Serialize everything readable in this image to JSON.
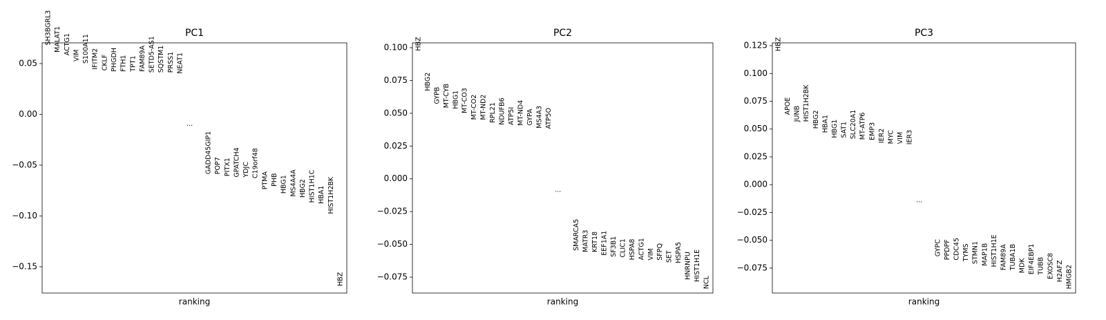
{
  "chart_data": [
    {
      "type": "ranking",
      "title": "PC1",
      "xlabel": "ranking",
      "ellipsis": "...",
      "categories": [
        "SH3BGRL3",
        "MALAT1",
        "ACTG1",
        "VIM",
        "S100A11",
        "IFITM2",
        "CKLF",
        "PHGDH",
        "FTH1",
        "TPT1",
        "FAM89A",
        "SETD5-AS1",
        "SQSTM1",
        "PRSS1",
        "NEAT1",
        "GADD45GIP1",
        "POP7",
        "PITX1",
        "GPATCH4",
        "YDJC",
        "C19orf48",
        "PTMA",
        "PHB",
        "HBG1",
        "MS4A4A",
        "HBG2",
        "HIST1H1C",
        "HBA1",
        "HIST1H2BK",
        "HBZ"
      ],
      "values": [
        0.068,
        0.061,
        0.058,
        0.052,
        0.05,
        0.044,
        0.043,
        0.042,
        0.042,
        0.042,
        0.042,
        0.041,
        0.041,
        0.041,
        0.04,
        -0.059,
        -0.059,
        -0.061,
        -0.062,
        -0.062,
        -0.063,
        -0.074,
        -0.071,
        -0.078,
        -0.081,
        -0.082,
        -0.087,
        -0.088,
        -0.098,
        -0.169
      ],
      "ylim": [
        -0.1759,
        0.0704
      ],
      "yticks": [
        0.05,
        {
          "value": 0,
          "label": "0.00"
        },
        {
          "value": -0.05,
          "label": "−0.05"
        },
        {
          "value": -0.1,
          "label": "−0.10"
        },
        {
          "value": -0.15,
          "label": "−0.15"
        }
      ]
    },
    {
      "type": "ranking",
      "title": "PC2",
      "xlabel": "ranking",
      "ellipsis": "...",
      "categories": [
        "HBZ",
        "HBG2",
        "GYPB",
        "MT-CYB",
        "HBG1",
        "MT-CO3",
        "MT-CO2",
        "MT-ND2",
        "RPL21",
        "NDUFB6",
        "ATP5I",
        "MT-ND4",
        "GYPA",
        "MS4A3",
        "ATP5O",
        "SMARCA5",
        "MATR3",
        "KRT18",
        "EEF1A1",
        "SF3B1",
        "CLIC1",
        "HSPA8",
        "ACTG1",
        "VIM",
        "SFPQ",
        "SET",
        "HSPA5",
        "HNRNPU",
        "HIST1H1E",
        "NCL"
      ],
      "values": [
        0.0976,
        0.067,
        0.057,
        0.054,
        0.0533,
        0.05,
        0.045,
        0.0449,
        0.0427,
        0.0411,
        0.041,
        0.0406,
        0.0406,
        0.0385,
        0.038,
        -0.0549,
        -0.056,
        -0.056,
        -0.0585,
        -0.0596,
        -0.06,
        -0.062,
        -0.062,
        -0.0622,
        -0.0622,
        -0.064,
        -0.0643,
        -0.077,
        -0.0786,
        -0.084
      ],
      "ylim": [
        -0.0871,
        0.1037
      ],
      "yticks": [
        {
          "value": 0.1,
          "label": "0.100"
        },
        {
          "value": 0.075,
          "label": "0.075"
        },
        {
          "value": 0.05,
          "label": "0.050"
        },
        {
          "value": 0.025,
          "label": "0.025"
        },
        {
          "value": 0,
          "label": "0.000"
        },
        {
          "value": -0.025,
          "label": "−0.025"
        },
        {
          "value": -0.05,
          "label": "−0.050"
        },
        {
          "value": -0.075,
          "label": "−0.075"
        }
      ]
    },
    {
      "type": "ranking",
      "title": "PC3",
      "xlabel": "ranking",
      "ellipsis": "...",
      "categories": [
        "HBZ",
        "APOE",
        "JUNB",
        "HIST1H2BK",
        "HBG2",
        "HBA1",
        "HBG1",
        "SAT1",
        "SLC20A1",
        "MT-ATP6",
        "EMP3",
        "IER2",
        "MYC",
        "VIM",
        "IER3",
        "GYPC",
        "PPDPF",
        "CDC45",
        "TYMS",
        "STMN1",
        "MAP1B",
        "HIST1H1E",
        "FAM89A",
        "TUBA1B",
        "MDK",
        "EIF4EBP1",
        "TUBB",
        "EXOSC8",
        "H2AFZ",
        "HMGB2"
      ],
      "values": [
        0.12,
        0.0627,
        0.0565,
        0.0565,
        0.0503,
        0.0466,
        0.042,
        0.042,
        0.041,
        0.0404,
        0.04,
        0.0373,
        0.0366,
        0.0366,
        0.036,
        -0.0646,
        -0.0677,
        -0.068,
        -0.069,
        -0.0714,
        -0.073,
        -0.074,
        -0.077,
        -0.077,
        -0.0795,
        -0.0807,
        -0.081,
        -0.085,
        -0.0875,
        -0.0938
      ],
      "ylim": [
        -0.0974,
        0.1275
      ],
      "yticks": [
        {
          "value": 0.125,
          "label": "0.125"
        },
        {
          "value": 0.1,
          "label": "0.100"
        },
        {
          "value": 0.075,
          "label": "0.075"
        },
        {
          "value": 0.05,
          "label": "0.050"
        },
        {
          "value": 0.025,
          "label": "0.025"
        },
        {
          "value": 0,
          "label": "0.000"
        },
        {
          "value": -0.025,
          "label": "−0.025"
        },
        {
          "value": -0.05,
          "label": "−0.050"
        },
        {
          "value": -0.075,
          "label": "−0.075"
        }
      ]
    }
  ]
}
